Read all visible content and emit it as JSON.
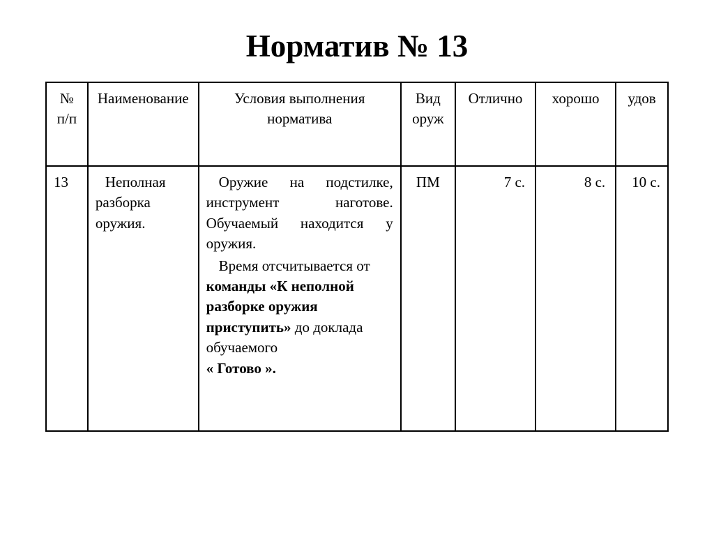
{
  "title": "Норматив № 13",
  "headers": {
    "num": "№ п/п",
    "name": "Наименование",
    "cond": "Условия выполнения норматива",
    "type": "Вид оруж",
    "exc": "Отлично",
    "good": "хорошо",
    "sat": "удов"
  },
  "row": {
    "num": "13",
    "name_line1": "Неполная",
    "name_rest": "разборка оружия.",
    "cond_p1_a": "Оружие на подстилке, инструмент наготове. Обучаемый находится у оружия.",
    "cond_p2_a": "Время отсчитывается от ",
    "cond_p2_b": "команды «К неполной разборке оружия приступить»",
    "cond_p2_c": " до доклада обучаемого",
    "cond_p2_d": " « Готово ».",
    "type": "ПМ",
    "exc": "7 с.",
    "good": "8 с.",
    "sat": "10 с."
  },
  "colors": {
    "bg": "#ffffff",
    "text": "#000000",
    "border": "#000000"
  },
  "fontsize": {
    "title": 45,
    "table": 21
  }
}
